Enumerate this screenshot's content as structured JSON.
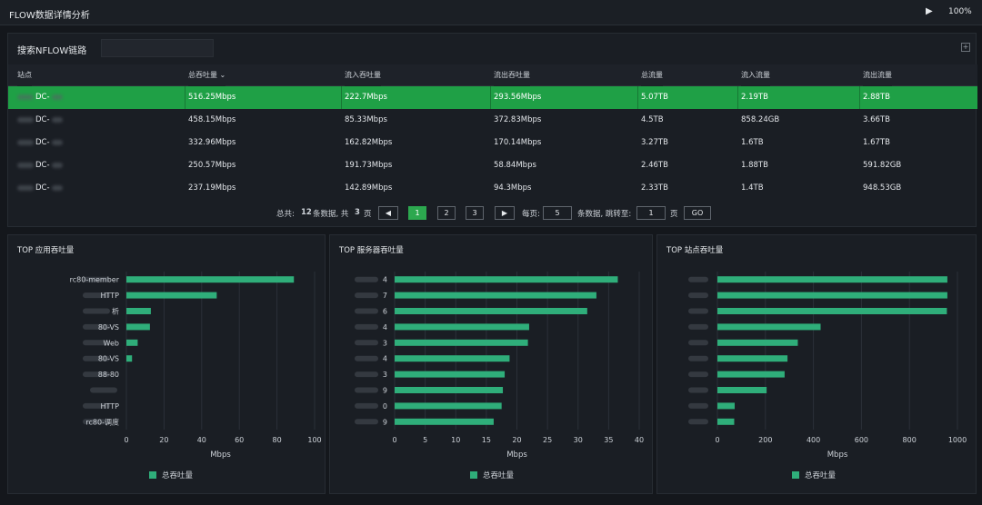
{
  "window": {
    "title": "FLOW数据详情分析",
    "play_icon": "play-icon",
    "zoom": "100%"
  },
  "search": {
    "label": "搜索NFLOW链路",
    "value": "",
    "placeholder": ""
  },
  "table": {
    "columns": [
      "站点",
      "总吞吐量 ⌄",
      "流入吞吐量",
      "流出吞吐量",
      "总流量",
      "流入流量",
      "流出流量"
    ],
    "rows": [
      {
        "site": "DC-",
        "total_tp": "516.25Mbps",
        "in_tp": "222.7Mbps",
        "out_tp": "293.56Mbps",
        "total": "5.07TB",
        "in": "2.19TB",
        "out": "2.88TB",
        "selected": true
      },
      {
        "site": "DC-",
        "total_tp": "458.15Mbps",
        "in_tp": "85.33Mbps",
        "out_tp": "372.83Mbps",
        "total": "4.5TB",
        "in": "858.24GB",
        "out": "3.66TB",
        "selected": false
      },
      {
        "site": "DC-",
        "total_tp": "332.96Mbps",
        "in_tp": "162.82Mbps",
        "out_tp": "170.14Mbps",
        "total": "3.27TB",
        "in": "1.6TB",
        "out": "1.67TB",
        "selected": false
      },
      {
        "site": "DC-",
        "total_tp": "250.57Mbps",
        "in_tp": "191.73Mbps",
        "out_tp": "58.84Mbps",
        "total": "2.46TB",
        "in": "1.88TB",
        "out": "591.82GB",
        "selected": false
      },
      {
        "site": "DC-",
        "total_tp": "237.19Mbps",
        "in_tp": "142.89Mbps",
        "out_tp": "94.3Mbps",
        "total": "2.33TB",
        "in": "1.4TB",
        "out": "948.53GB",
        "selected": false
      }
    ]
  },
  "pagination": {
    "total_prefix": "总共:",
    "total_count": "12",
    "total_mid": "条数据, 共",
    "total_pages": "3",
    "total_suffix": "页",
    "prev_icon": "◀",
    "pages": [
      "1",
      "2",
      "3"
    ],
    "current": "1",
    "next_icon": "▶",
    "per_page_label": "每页:",
    "per_page": "5",
    "jump_label": "条数据, 跳转至:",
    "jump_value": "1",
    "page_unit": "页",
    "go_label": "GO"
  },
  "chart_data": [
    {
      "type": "bar",
      "orientation": "horizontal",
      "title": "TOP 应用吞吐量",
      "categories": [
        "rc80-member",
        "HTTP",
        "析",
        "80-VS",
        "Web",
        "80-VS",
        "88-80",
        "",
        "HTTP",
        "rc80-调度"
      ],
      "series": [
        {
          "name": "总吞吐量",
          "values": [
            89,
            48,
            13,
            12.5,
            6,
            3,
            0,
            0,
            0,
            0
          ]
        }
      ],
      "xlabel": "Mbps",
      "xlim": [
        0,
        100
      ],
      "xticks": [
        "0",
        "20",
        "40",
        "60",
        "80",
        "100"
      ],
      "color": "#2fae7a",
      "grid": true,
      "legend": "bottom"
    },
    {
      "type": "bar",
      "orientation": "horizontal",
      "title": "TOP 服务器吞吐量",
      "categories": [
        "4",
        "7",
        "6",
        "4",
        "3",
        "4",
        "3",
        "9",
        "0",
        "9"
      ],
      "series": [
        {
          "name": "总吞吐量",
          "values": [
            36.5,
            33,
            31.5,
            22,
            21.8,
            18.8,
            18,
            17.7,
            17.5,
            16.2
          ]
        }
      ],
      "xlabel": "Mbps",
      "xlim": [
        0,
        40
      ],
      "xticks": [
        "0",
        "5",
        "10",
        "15",
        "20",
        "25",
        "30",
        "35",
        "40"
      ],
      "color": "#2fae7a",
      "grid": true,
      "legend": "bottom"
    },
    {
      "type": "bar",
      "orientation": "horizontal",
      "title": "TOP 站点吞吐量",
      "categories": [
        "",
        "",
        "",
        "",
        "",
        "",
        "",
        "",
        "",
        ""
      ],
      "series": [
        {
          "name": "总吞吐量",
          "values": [
            958,
            958,
            956,
            430,
            335,
            292,
            280,
            205,
            72,
            70
          ]
        }
      ],
      "xlabel": "Mbps",
      "xlim": [
        0,
        1000
      ],
      "xticks": [
        "0",
        "200",
        "400",
        "600",
        "800",
        "1000"
      ],
      "color": "#2fae7a",
      "grid": true,
      "legend": "bottom"
    }
  ]
}
